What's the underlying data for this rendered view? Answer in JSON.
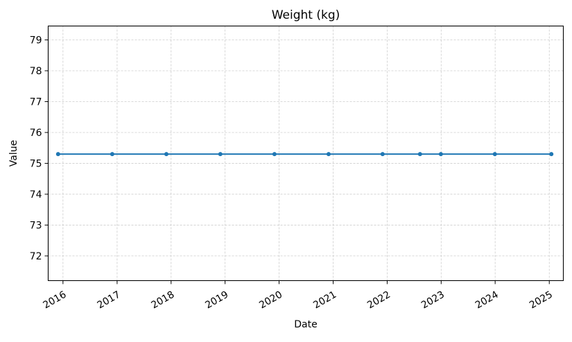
{
  "chart_data": {
    "type": "line",
    "title": "Weight (kg)",
    "xlabel": "Date",
    "ylabel": "Value",
    "x_axis_type": "date",
    "xlim": [
      "2015-09-23",
      "2025-04-06"
    ],
    "ylim": [
      71.2,
      79.45
    ],
    "yticks": [
      72,
      73,
      74,
      75,
      76,
      77,
      78,
      79
    ],
    "xticks": [
      {
        "label": "2016",
        "date": "2016-01-01"
      },
      {
        "label": "2017",
        "date": "2017-01-01"
      },
      {
        "label": "2018",
        "date": "2018-01-01"
      },
      {
        "label": "2019",
        "date": "2019-01-01"
      },
      {
        "label": "2020",
        "date": "2020-01-01"
      },
      {
        "label": "2021",
        "date": "2021-01-01"
      },
      {
        "label": "2022",
        "date": "2022-01-01"
      },
      {
        "label": "2023",
        "date": "2023-01-01"
      },
      {
        "label": "2024",
        "date": "2024-01-01"
      },
      {
        "label": "2025",
        "date": "2025-01-01"
      }
    ],
    "grid": true,
    "legend": false,
    "series": [
      {
        "color": "#1f77b4",
        "marker": "circle",
        "points": [
          {
            "x": "2015-11-29",
            "y": 75.3
          },
          {
            "x": "2016-11-29",
            "y": 75.3
          },
          {
            "x": "2017-11-30",
            "y": 75.3
          },
          {
            "x": "2018-11-30",
            "y": 75.3
          },
          {
            "x": "2019-12-01",
            "y": 75.3
          },
          {
            "x": "2020-12-01",
            "y": 75.3
          },
          {
            "x": "2021-12-01",
            "y": 75.3
          },
          {
            "x": "2022-08-11",
            "y": 75.3
          },
          {
            "x": "2022-12-30",
            "y": 75.3
          },
          {
            "x": "2023-12-30",
            "y": 75.3
          },
          {
            "x": "2025-01-15",
            "y": 75.3
          }
        ]
      }
    ]
  }
}
